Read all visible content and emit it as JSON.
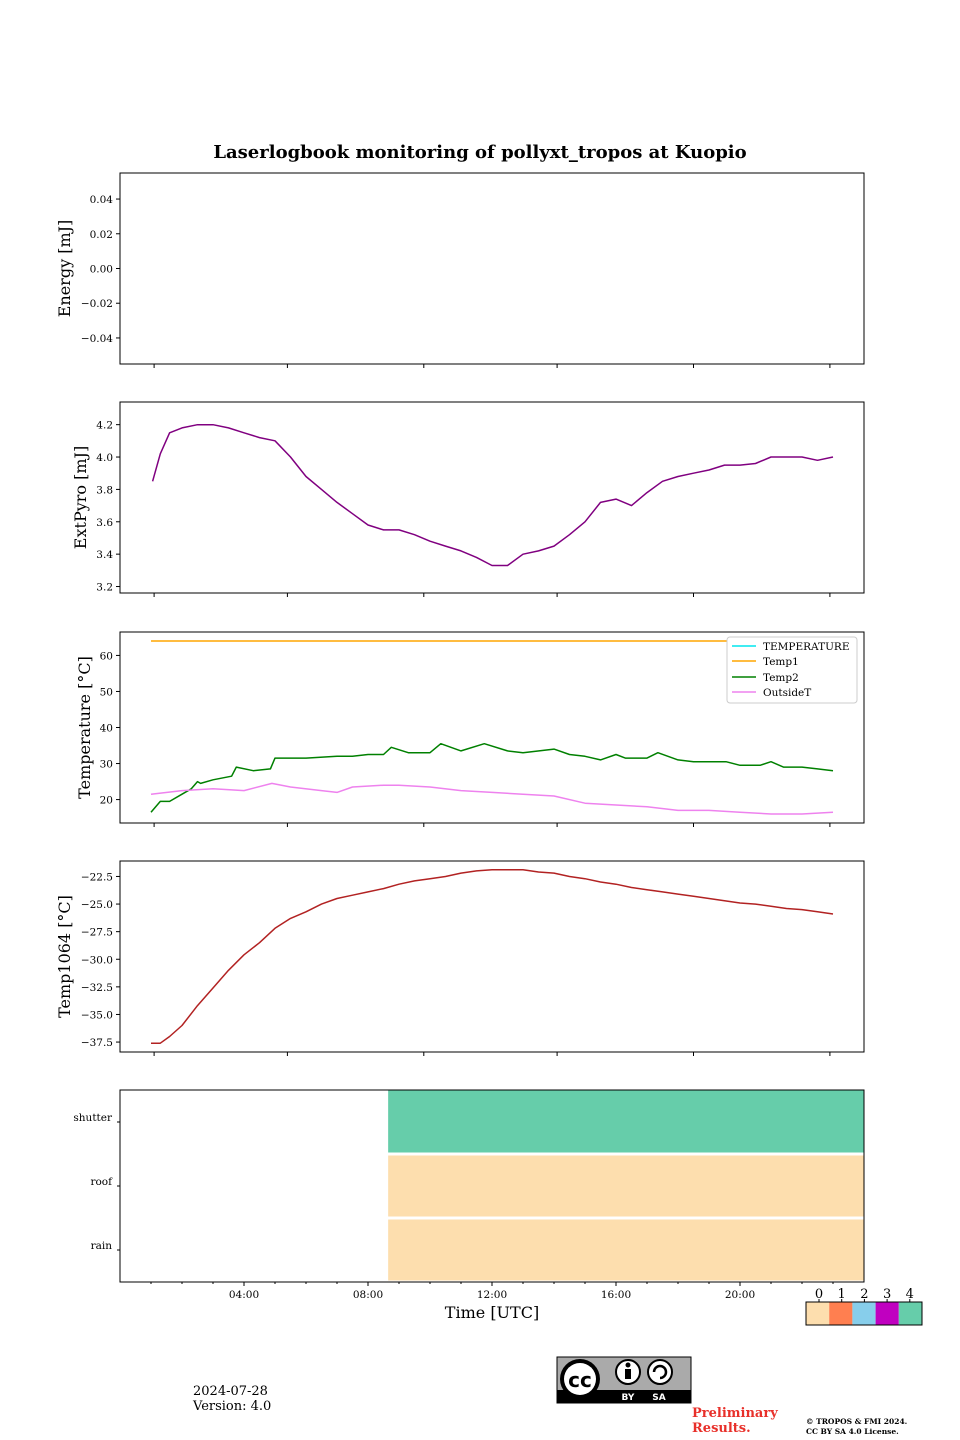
{
  "title": "Laserlogbook monitoring of pollyxt_tropos at Kuopio",
  "footer": {
    "date": "2024-07-28",
    "version": "Version: 4.0",
    "preliminary_line1": "Preliminary",
    "preliminary_line2": "Results.",
    "copyright_line1": "© TROPOS & FMI 2024.",
    "copyright_line2": "CC BY SA 4.0 License.",
    "license_badge_by": "BY",
    "license_badge_sa": "SA"
  },
  "chart_data": [
    {
      "type": "line",
      "ylabel": "Energy [mJ]",
      "ylim": [
        -0.055,
        0.055
      ],
      "yticks": [
        0.04,
        0.02,
        0.0,
        -0.02,
        -0.04
      ],
      "ytick_labels": [
        "0.04",
        "0.02",
        "0.00",
        "−0.02",
        "−0.04"
      ],
      "series": []
    },
    {
      "type": "line",
      "ylabel": "ExtPyro [mJ]",
      "ylim": [
        3.16,
        4.34
      ],
      "yticks": [
        4.2,
        4.0,
        3.8,
        3.6,
        3.4,
        3.2
      ],
      "ytick_labels": [
        "4.2",
        "4.0",
        "3.8",
        "3.6",
        "3.4",
        "3.2"
      ],
      "series": [
        {
          "color": "#800080",
          "x": [
            1.05,
            1.3,
            1.6,
            2.0,
            2.5,
            3.0,
            3.5,
            4.0,
            4.5,
            5.0,
            5.5,
            6.0,
            6.5,
            7.0,
            7.5,
            8.0,
            8.5,
            9.0,
            9.5,
            10.0,
            10.5,
            11.0,
            11.5,
            12.0,
            12.5,
            13.0,
            13.5,
            14.0,
            14.5,
            15.0,
            15.5,
            16.0,
            16.5,
            17.0,
            17.5,
            18.0,
            18.5,
            19.0,
            19.5,
            20.0,
            20.5,
            21.0,
            21.5,
            22.0,
            22.5,
            23.0
          ],
          "y": [
            3.85,
            4.02,
            4.15,
            4.18,
            4.2,
            4.2,
            4.18,
            4.15,
            4.12,
            4.1,
            4.0,
            3.88,
            3.8,
            3.72,
            3.65,
            3.58,
            3.55,
            3.55,
            3.52,
            3.48,
            3.45,
            3.42,
            3.38,
            3.33,
            3.33,
            3.4,
            3.42,
            3.45,
            3.52,
            3.6,
            3.72,
            3.74,
            3.7,
            3.78,
            3.85,
            3.88,
            3.9,
            3.92,
            3.95,
            3.95,
            3.96,
            4.0,
            4.0,
            4.0,
            3.98,
            4.0
          ]
        }
      ]
    },
    {
      "type": "line",
      "ylabel": "Temperature [°C]",
      "ylim": [
        13.5,
        66.5
      ],
      "yticks": [
        60,
        50,
        40,
        30,
        20
      ],
      "ytick_labels": [
        "60",
        "50",
        "40",
        "30",
        "20"
      ],
      "legend": "top-right",
      "series": [
        {
          "name": "TEMPERATURE",
          "color": "#00e5ee",
          "x": [],
          "y": []
        },
        {
          "name": "Temp1",
          "color": "#ffa500",
          "x": [
            1.0,
            23.0
          ],
          "y": [
            64,
            64
          ]
        },
        {
          "name": "Temp2",
          "color": "#008000",
          "x": [
            1.0,
            1.3,
            1.6,
            2.0,
            2.3,
            2.5,
            2.6,
            3.0,
            3.6,
            3.75,
            4.3,
            4.85,
            5.0,
            6.0,
            7.0,
            7.5,
            8.0,
            8.5,
            8.75,
            9.3,
            10.0,
            10.35,
            11.0,
            11.75,
            12.5,
            13.0,
            14.0,
            14.5,
            15.0,
            15.5,
            16.0,
            16.3,
            17.0,
            17.35,
            18.0,
            18.5,
            19.0,
            19.55,
            20.0,
            20.65,
            21.0,
            21.4,
            22.0,
            22.5,
            23.0
          ],
          "y": [
            16.5,
            19.5,
            19.5,
            21.5,
            23.0,
            25.0,
            24.5,
            25.5,
            26.5,
            29.0,
            28.0,
            28.5,
            31.5,
            31.5,
            32.0,
            32.0,
            32.5,
            32.5,
            34.5,
            33.0,
            33.0,
            35.5,
            33.5,
            35.5,
            33.5,
            33.0,
            34.0,
            32.5,
            32.0,
            31.0,
            32.5,
            31.5,
            31.5,
            33.0,
            31.0,
            30.5,
            30.5,
            30.5,
            29.5,
            29.5,
            30.5,
            29.0,
            29.0,
            28.5,
            28.0
          ]
        },
        {
          "name": "OutsideT",
          "color": "#ee82ee",
          "x": [
            1.0,
            2.0,
            3.0,
            4.0,
            4.9,
            5.5,
            6.5,
            7.0,
            7.5,
            8.5,
            9.0,
            10.0,
            11.0,
            12.0,
            13.0,
            14.0,
            15.0,
            16.0,
            17.0,
            18.0,
            19.0,
            20.0,
            21.0,
            22.0,
            23.0
          ],
          "y": [
            21.5,
            22.5,
            23.0,
            22.5,
            24.5,
            23.5,
            22.5,
            22.0,
            23.5,
            24.0,
            24.0,
            23.5,
            22.5,
            22.0,
            21.5,
            21.0,
            19.0,
            18.5,
            18.0,
            17.0,
            17.0,
            16.5,
            16.0,
            16.0,
            16.5
          ]
        }
      ]
    },
    {
      "type": "line",
      "ylabel": "Temp1064 [°C]",
      "ylim": [
        -38.4,
        -21.1
      ],
      "yticks": [
        -22.5,
        -25.0,
        -27.5,
        -30.0,
        -32.5,
        -35.0,
        -37.5
      ],
      "ytick_labels": [
        "−22.5",
        "−25.0",
        "−27.5",
        "−30.0",
        "−32.5",
        "−35.0",
        "−37.5"
      ],
      "series": [
        {
          "color": "#b22222",
          "x": [
            1.0,
            1.3,
            1.6,
            2.0,
            2.5,
            3.0,
            3.5,
            4.0,
            4.5,
            5.0,
            5.5,
            6.0,
            6.5,
            7.0,
            7.5,
            8.0,
            8.5,
            9.0,
            9.5,
            10.0,
            10.5,
            11.0,
            11.5,
            12.0,
            12.5,
            13.0,
            13.5,
            14.0,
            14.5,
            15.0,
            15.5,
            16.0,
            16.5,
            17.0,
            17.5,
            18.0,
            18.5,
            19.0,
            19.5,
            20.0,
            20.5,
            21.0,
            21.5,
            22.0,
            22.5,
            23.0
          ],
          "y": [
            -37.6,
            -37.6,
            -37.0,
            -36.0,
            -34.2,
            -32.6,
            -31.0,
            -29.6,
            -28.5,
            -27.2,
            -26.3,
            -25.7,
            -25.0,
            -24.5,
            -24.2,
            -23.9,
            -23.6,
            -23.2,
            -22.9,
            -22.7,
            -22.5,
            -22.2,
            -22.0,
            -21.9,
            -21.9,
            -21.9,
            -22.1,
            -22.2,
            -22.5,
            -22.7,
            -23.0,
            -23.2,
            -23.5,
            -23.7,
            -23.9,
            -24.1,
            -24.3,
            -24.5,
            -24.7,
            -24.9,
            -25.0,
            -25.2,
            -25.4,
            -25.5,
            -25.7,
            -25.9
          ]
        }
      ]
    },
    {
      "type": "heatmap",
      "xlabel": "Time [UTC]",
      "xlim": [
        0,
        24
      ],
      "xticks": [
        4,
        8,
        12,
        16,
        20
      ],
      "xtick_labels": [
        "04:00",
        "08:00",
        "12:00",
        "16:00",
        "20:00"
      ],
      "rows": [
        "shutter",
        "roof",
        "rain"
      ],
      "segments": [
        {
          "row": "shutter",
          "x_start": 8.65,
          "x_end": 24,
          "value": 4
        },
        {
          "row": "roof",
          "x_start": 8.65,
          "x_end": 24,
          "value": 0
        },
        {
          "row": "rain",
          "x_start": 8.65,
          "x_end": 24,
          "value": 0
        }
      ],
      "colorbar": {
        "labels": [
          "0",
          "1",
          "2",
          "3",
          "4"
        ],
        "colors": [
          "#fddeae",
          "#ff7f50",
          "#87ceeb",
          "#c000c0",
          "#66cdaa"
        ]
      }
    }
  ]
}
